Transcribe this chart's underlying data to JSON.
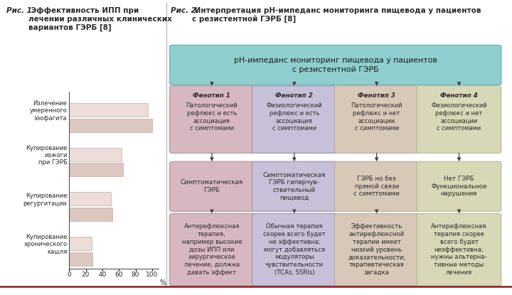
{
  "fig1_title_italic": "Рис. 1.",
  "fig1_title_bold": " Эффективность ИПП при\nлечении различных клинических\nвариантов ГЭРБ [8]",
  "bar_categories": [
    "Купирование\nхронического\nкашля",
    "Купирование\nрегургитации",
    "Купирование\nизжоги\nпри ГЭРБ",
    "Излечение\nумеренного\nэзофагита"
  ],
  "bar_values1": [
    27,
    50,
    63,
    95
  ],
  "bar_values2": [
    28,
    52,
    65,
    100
  ],
  "bar_color1": "#dcc8c0",
  "bar_color2": "#ecddd8",
  "bar_edge_color": "#b8a098",
  "xlabel": "%",
  "xticks": [
    0,
    20,
    40,
    60,
    80,
    100
  ],
  "fig2_title_italic": "Рис. 2.",
  "fig2_title_bold": " Интерпретация рН-импеданс мониторинга пищевода у пациентов\nс резистентной ГЭРБ [8]",
  "header_text": "рН-импеданс мониторинг пищевода у пациентов\nс резистентной ГЭРБ",
  "header_color": "#8ecece",
  "header_border": "#6aaeae",
  "phenotype_colors": [
    "#d8b8c0",
    "#c8c0d8",
    "#d8c8b8",
    "#d8d8b8"
  ],
  "phenotype_border": [
    "#b89098",
    "#9890b8",
    "#b8a898",
    "#b8b898"
  ],
  "phenotype_titles": [
    "Фенотип 1",
    "Фенотип 2",
    "Фенотип 3",
    "Фенотип 4"
  ],
  "phenotype_texts": [
    "Патологический\nрефлюкс и есть\nассоциация\nс симптомами",
    "Физиологический\nрефлюкс и есть\nассоциация\nс симптомами",
    "Патологический\nрефлюкс и нет\nассоциации\nс симптомами",
    "Физиологический\nрефлюкс и нет\nассоциации\nс симптомами"
  ],
  "middle_colors": [
    "#d8b8c0",
    "#c8c0d8",
    "#d8c8b8",
    "#d8d8b8"
  ],
  "middle_border": [
    "#b89098",
    "#9890b8",
    "#b8a898",
    "#b8b898"
  ],
  "middle_texts": [
    "Симптоматическая\nГЭРБ",
    "Симптоматическая\nГЭРБ гиперчув-\nствительный\nпищевод",
    "ГЭРБ но без\nпрямой связи\nс симптомами",
    "Нет ГЭРБ\nФункциональное\nнарушение"
  ],
  "bottom_colors": [
    "#d8b8c0",
    "#c8c0d8",
    "#d8c8b8",
    "#d8d8b8"
  ],
  "bottom_border": [
    "#b89098",
    "#9890b8",
    "#b8a898",
    "#b8b898"
  ],
  "bottom_texts": [
    "Антирефлюксная\nтерапия,\nнапример высокие\nдозы ИПП или\nхирургическое\nлечение, должна\nдавать эффект",
    "Обычная терапия\nскорее всего будет\nне эффективна;\nмогут добавляться\nмодуляторы\nчувствительности\n(TCAs, SSRIs)",
    "Эффективность\nантирефлюксной\nтерапии имеет\nнизкий уровень\nдоказательности;\nтерапевтическая\nзагадка",
    "Антирефлюксная\nтерапия скорее\nвсего будет\nнеэффективна;\nнужны альтерна-\nтивные методы\nлечения"
  ],
  "bg_color": "#ffffff",
  "text_color": "#2a2a2a",
  "bottom_line_color": "#8b1a1a",
  "divider_color": "#888888"
}
